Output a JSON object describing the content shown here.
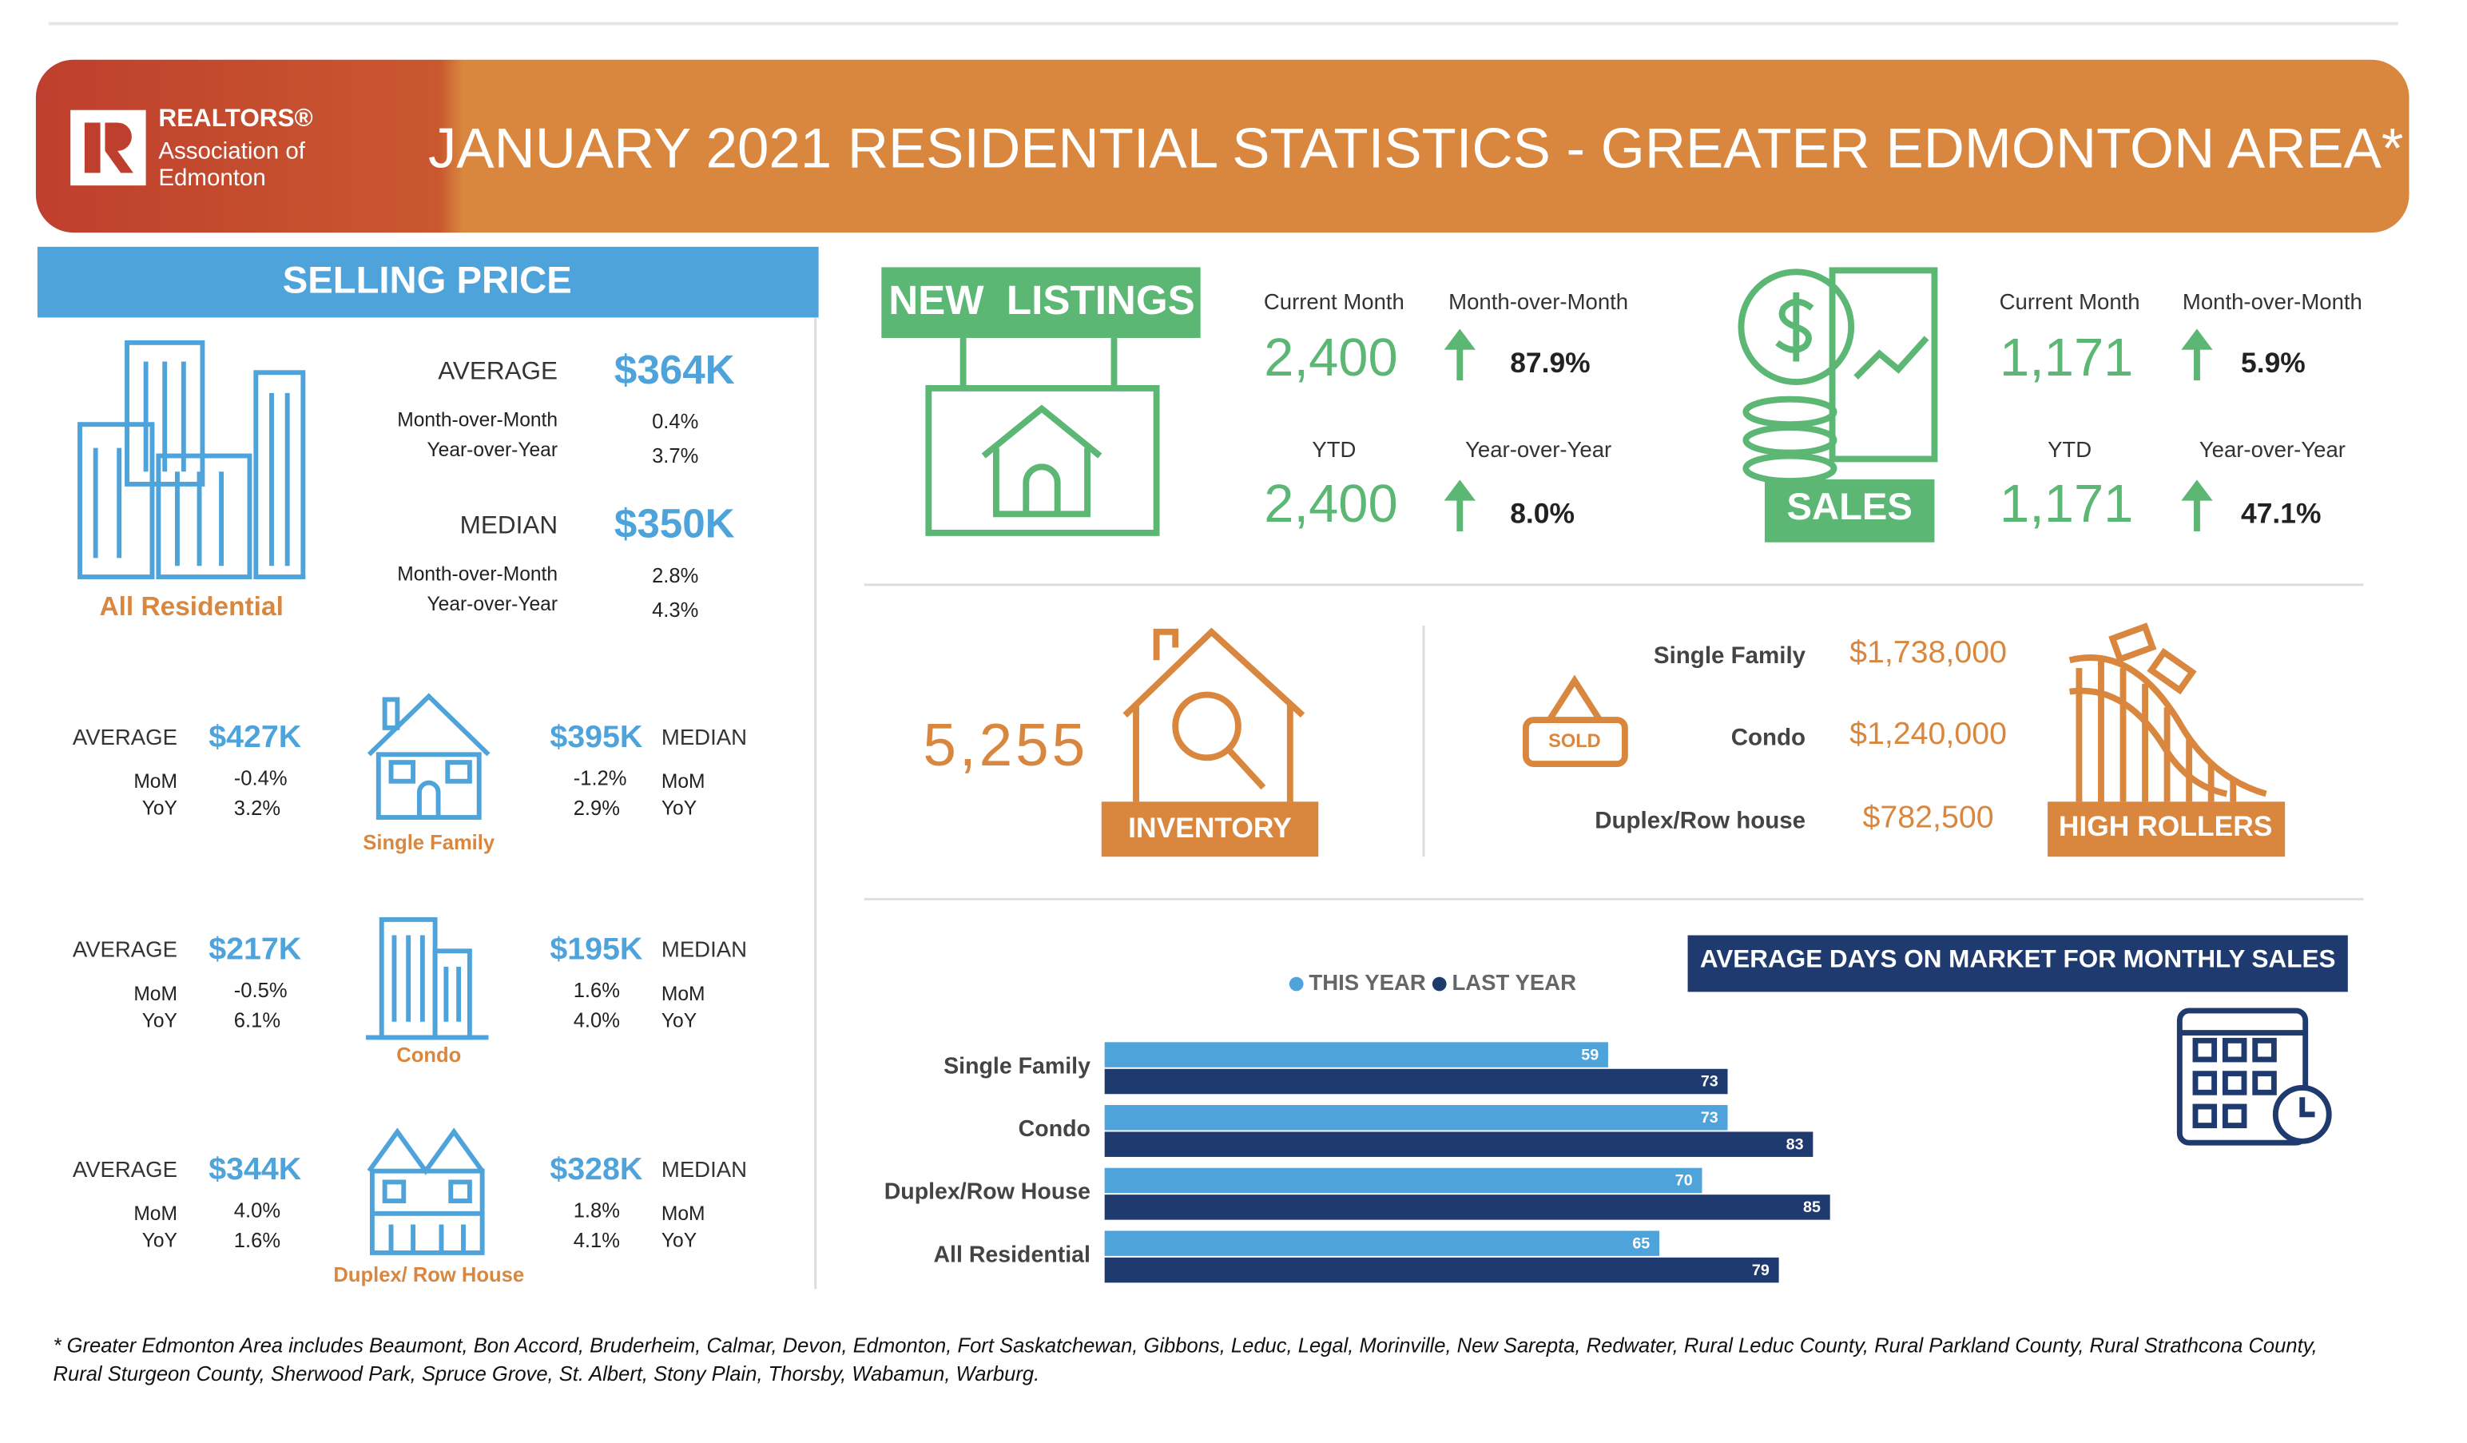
{
  "header": {
    "logo": [
      "REALTORS®",
      "Association of",
      "Edmonton"
    ],
    "title": "JANUARY 2021 RESIDENTIAL STATISTICS - GREATER EDMONTON AREA*"
  },
  "selling_price": {
    "title": "SELLING PRICE",
    "all": {
      "label": "All Residential",
      "average": {
        "label": "AVERAGE",
        "value": "$364K",
        "mom_label": "Month-over-Month",
        "mom": "0.4%",
        "yoy_label": "Year-over-Year",
        "yoy": "3.7%"
      },
      "median": {
        "label": "MEDIAN",
        "value": "$350K",
        "mom_label": "Month-over-Month",
        "mom": "2.8%",
        "yoy_label": "Year-over-Year",
        "yoy": "4.3%"
      }
    },
    "types": [
      {
        "label": "Single Family",
        "average": {
          "label": "AVERAGE",
          "value": "$427K",
          "mom_label": "MoM",
          "mom": "-0.4%",
          "yoy_label": "YoY",
          "yoy": "3.2%"
        },
        "median": {
          "label": "MEDIAN",
          "value": "$395K",
          "mom_label": "MoM",
          "mom": "-1.2%",
          "yoy_label": "YoY",
          "yoy": "2.9%"
        }
      },
      {
        "label": "Condo",
        "average": {
          "label": "AVERAGE",
          "value": "$217K",
          "mom_label": "MoM",
          "mom": "-0.5%",
          "yoy_label": "YoY",
          "yoy": "6.1%"
        },
        "median": {
          "label": "MEDIAN",
          "value": "$195K",
          "mom_label": "MoM",
          "mom": "1.6%",
          "yoy_label": "YoY",
          "yoy": "4.0%"
        }
      },
      {
        "label": "Duplex/ Row House",
        "average": {
          "label": "AVERAGE",
          "value": "$344K",
          "mom_label": "MoM",
          "mom": "4.0%",
          "yoy_label": "YoY",
          "yoy": "1.6%"
        },
        "median": {
          "label": "MEDIAN",
          "value": "$328K",
          "mom_label": "MoM",
          "mom": "1.8%",
          "yoy_label": "YoY",
          "yoy": "4.1%"
        }
      }
    ]
  },
  "new_listings": {
    "title": "NEW  LISTINGS",
    "current_label": "Current Month",
    "current": "2,400",
    "mom_label": "Month-over-Month",
    "mom": "87.9%",
    "ytd_label": "YTD",
    "ytd": "2,400",
    "yoy_label": "Year-over-Year",
    "yoy": "8.0%"
  },
  "sales": {
    "title": "SALES",
    "current_label": "Current Month",
    "current": "1,171",
    "mom_label": "Month-over-Month",
    "mom": "5.9%",
    "ytd_label": "YTD",
    "ytd": "1,171",
    "yoy_label": "Year-over-Year",
    "yoy": "47.1%"
  },
  "inventory": {
    "title": "INVENTORY",
    "value": "5,255"
  },
  "high_rollers": {
    "title": "HIGH ROLLERS",
    "sign": "SOLD",
    "items": [
      {
        "label": "Single Family",
        "price": "$1,738,000"
      },
      {
        "label": "Condo",
        "price": "$1,240,000"
      },
      {
        "label": "Duplex/Row house",
        "price": "$782,500"
      }
    ]
  },
  "days_on_market": {
    "type": "bar",
    "orientation": "horizontal",
    "title": "AVERAGE DAYS ON MARKET FOR MONTHLY SALES",
    "categories": [
      "Single Family",
      "Condo",
      "Duplex/Row House",
      "All Residential"
    ],
    "series": [
      {
        "name": "THIS YEAR",
        "color": "#4fa3db",
        "values": [
          59,
          73,
          70,
          65
        ]
      },
      {
        "name": "LAST YEAR",
        "color": "#1f3a6e",
        "values": [
          73,
          83,
          85,
          79
        ]
      }
    ]
  },
  "footnote": [
    "* Greater Edmonton Area includes Beaumont, Bon Accord, Bruderheim, Calmar, Devon, Edmonton, Fort Saskatchewan, Gibbons, Leduc, Legal, Morinville, New Sarepta, Redwater, Rural Leduc County, Rural Parkland County, Rural Strathcona County,",
    "Rural Sturgeon County, Sherwood Park, Spruce Grove, St. Albert, Stony Plain, Thorsby, Wabamun, Warburg."
  ]
}
